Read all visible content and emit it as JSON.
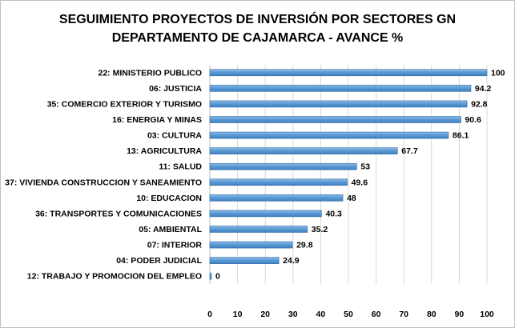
{
  "chart_data": {
    "type": "bar",
    "orientation": "horizontal",
    "title": "SEGUIMIENTO PROYECTOS DE INVERSIÓN POR SECTORES GN\nDEPARTAMENTO DE CAJAMARCA - AVANCE %",
    "categories": [
      "22: MINISTERIO PUBLICO",
      "06: JUSTICIA",
      "35: COMERCIO EXTERIOR Y TURISMO",
      "16: ENERGIA Y MINAS",
      "03: CULTURA",
      "13: AGRICULTURA",
      "11: SALUD",
      "37: VIVIENDA CONSTRUCCION Y SANEAMIENTO",
      "10: EDUCACION",
      "36: TRANSPORTES Y COMUNICACIONES",
      "05: AMBIENTAL",
      "07: INTERIOR",
      "04: PODER JUDICIAL",
      "12: TRABAJO Y PROMOCION DEL EMPLEO"
    ],
    "values": [
      100,
      94.2,
      92.8,
      90.6,
      86.1,
      67.7,
      53,
      49.6,
      48,
      40.3,
      35.2,
      29.8,
      24.9,
      0
    ],
    "value_labels": [
      "100",
      "94.2",
      "92.8",
      "90.6",
      "86.1",
      "67.7",
      "53",
      "49.6",
      "48",
      "40.3",
      "35.2",
      "29.8",
      "24.9",
      "0"
    ],
    "xlim": [
      0,
      100
    ],
    "x_ticks": [
      "0",
      "10",
      "20",
      "30",
      "40",
      "50",
      "60",
      "70",
      "80",
      "90",
      "100"
    ],
    "grid": true,
    "legend": "none",
    "bar_color": "#5b9bd5",
    "bar_edge_color": "#2e6ea6"
  }
}
